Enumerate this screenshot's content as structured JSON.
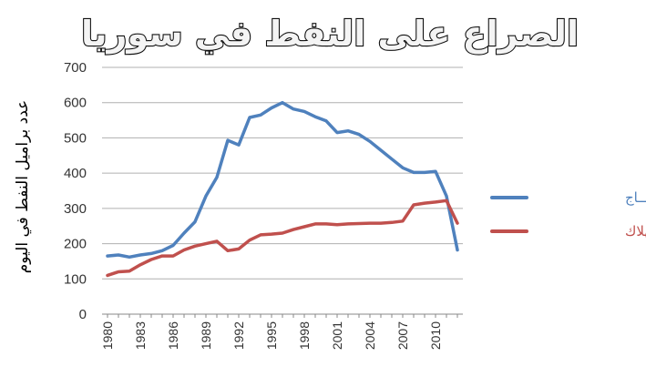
{
  "chart_data": {
    "type": "line",
    "title": "الصراع على النفط في سوريا",
    "ylabel": "عدد براميل النفط في اليوم",
    "xlabel": "",
    "ylim": [
      0,
      700
    ],
    "yticks": [
      0,
      100,
      200,
      300,
      400,
      500,
      600,
      700
    ],
    "x": [
      1980,
      1981,
      1982,
      1983,
      1984,
      1985,
      1986,
      1987,
      1988,
      1989,
      1990,
      1991,
      1992,
      1993,
      1994,
      1995,
      1996,
      1997,
      1998,
      1999,
      2000,
      2001,
      2002,
      2003,
      2004,
      2005,
      2006,
      2007,
      2008,
      2009,
      2010,
      2011,
      2012
    ],
    "xticks": [
      1980,
      1983,
      1986,
      1989,
      1992,
      1995,
      1998,
      2001,
      2004,
      2007,
      2010
    ],
    "grid": true,
    "legend_position": "right",
    "series": [
      {
        "name": "الإنتـــــاج",
        "color": "#4f81bd",
        "values": [
          165,
          168,
          162,
          168,
          172,
          180,
          195,
          230,
          262,
          335,
          388,
          493,
          480,
          558,
          565,
          585,
          600,
          582,
          575,
          560,
          548,
          515,
          520,
          510,
          490,
          465,
          440,
          415,
          402,
          402,
          405,
          335,
          182
        ]
      },
      {
        "name": "الاستهلاك",
        "color": "#c0504d",
        "values": [
          110,
          120,
          122,
          140,
          155,
          165,
          165,
          182,
          193,
          200,
          207,
          180,
          185,
          210,
          225,
          227,
          230,
          240,
          248,
          256,
          256,
          254,
          256,
          257,
          258,
          258,
          260,
          264,
          310,
          315,
          318,
          322,
          258
        ]
      }
    ]
  }
}
